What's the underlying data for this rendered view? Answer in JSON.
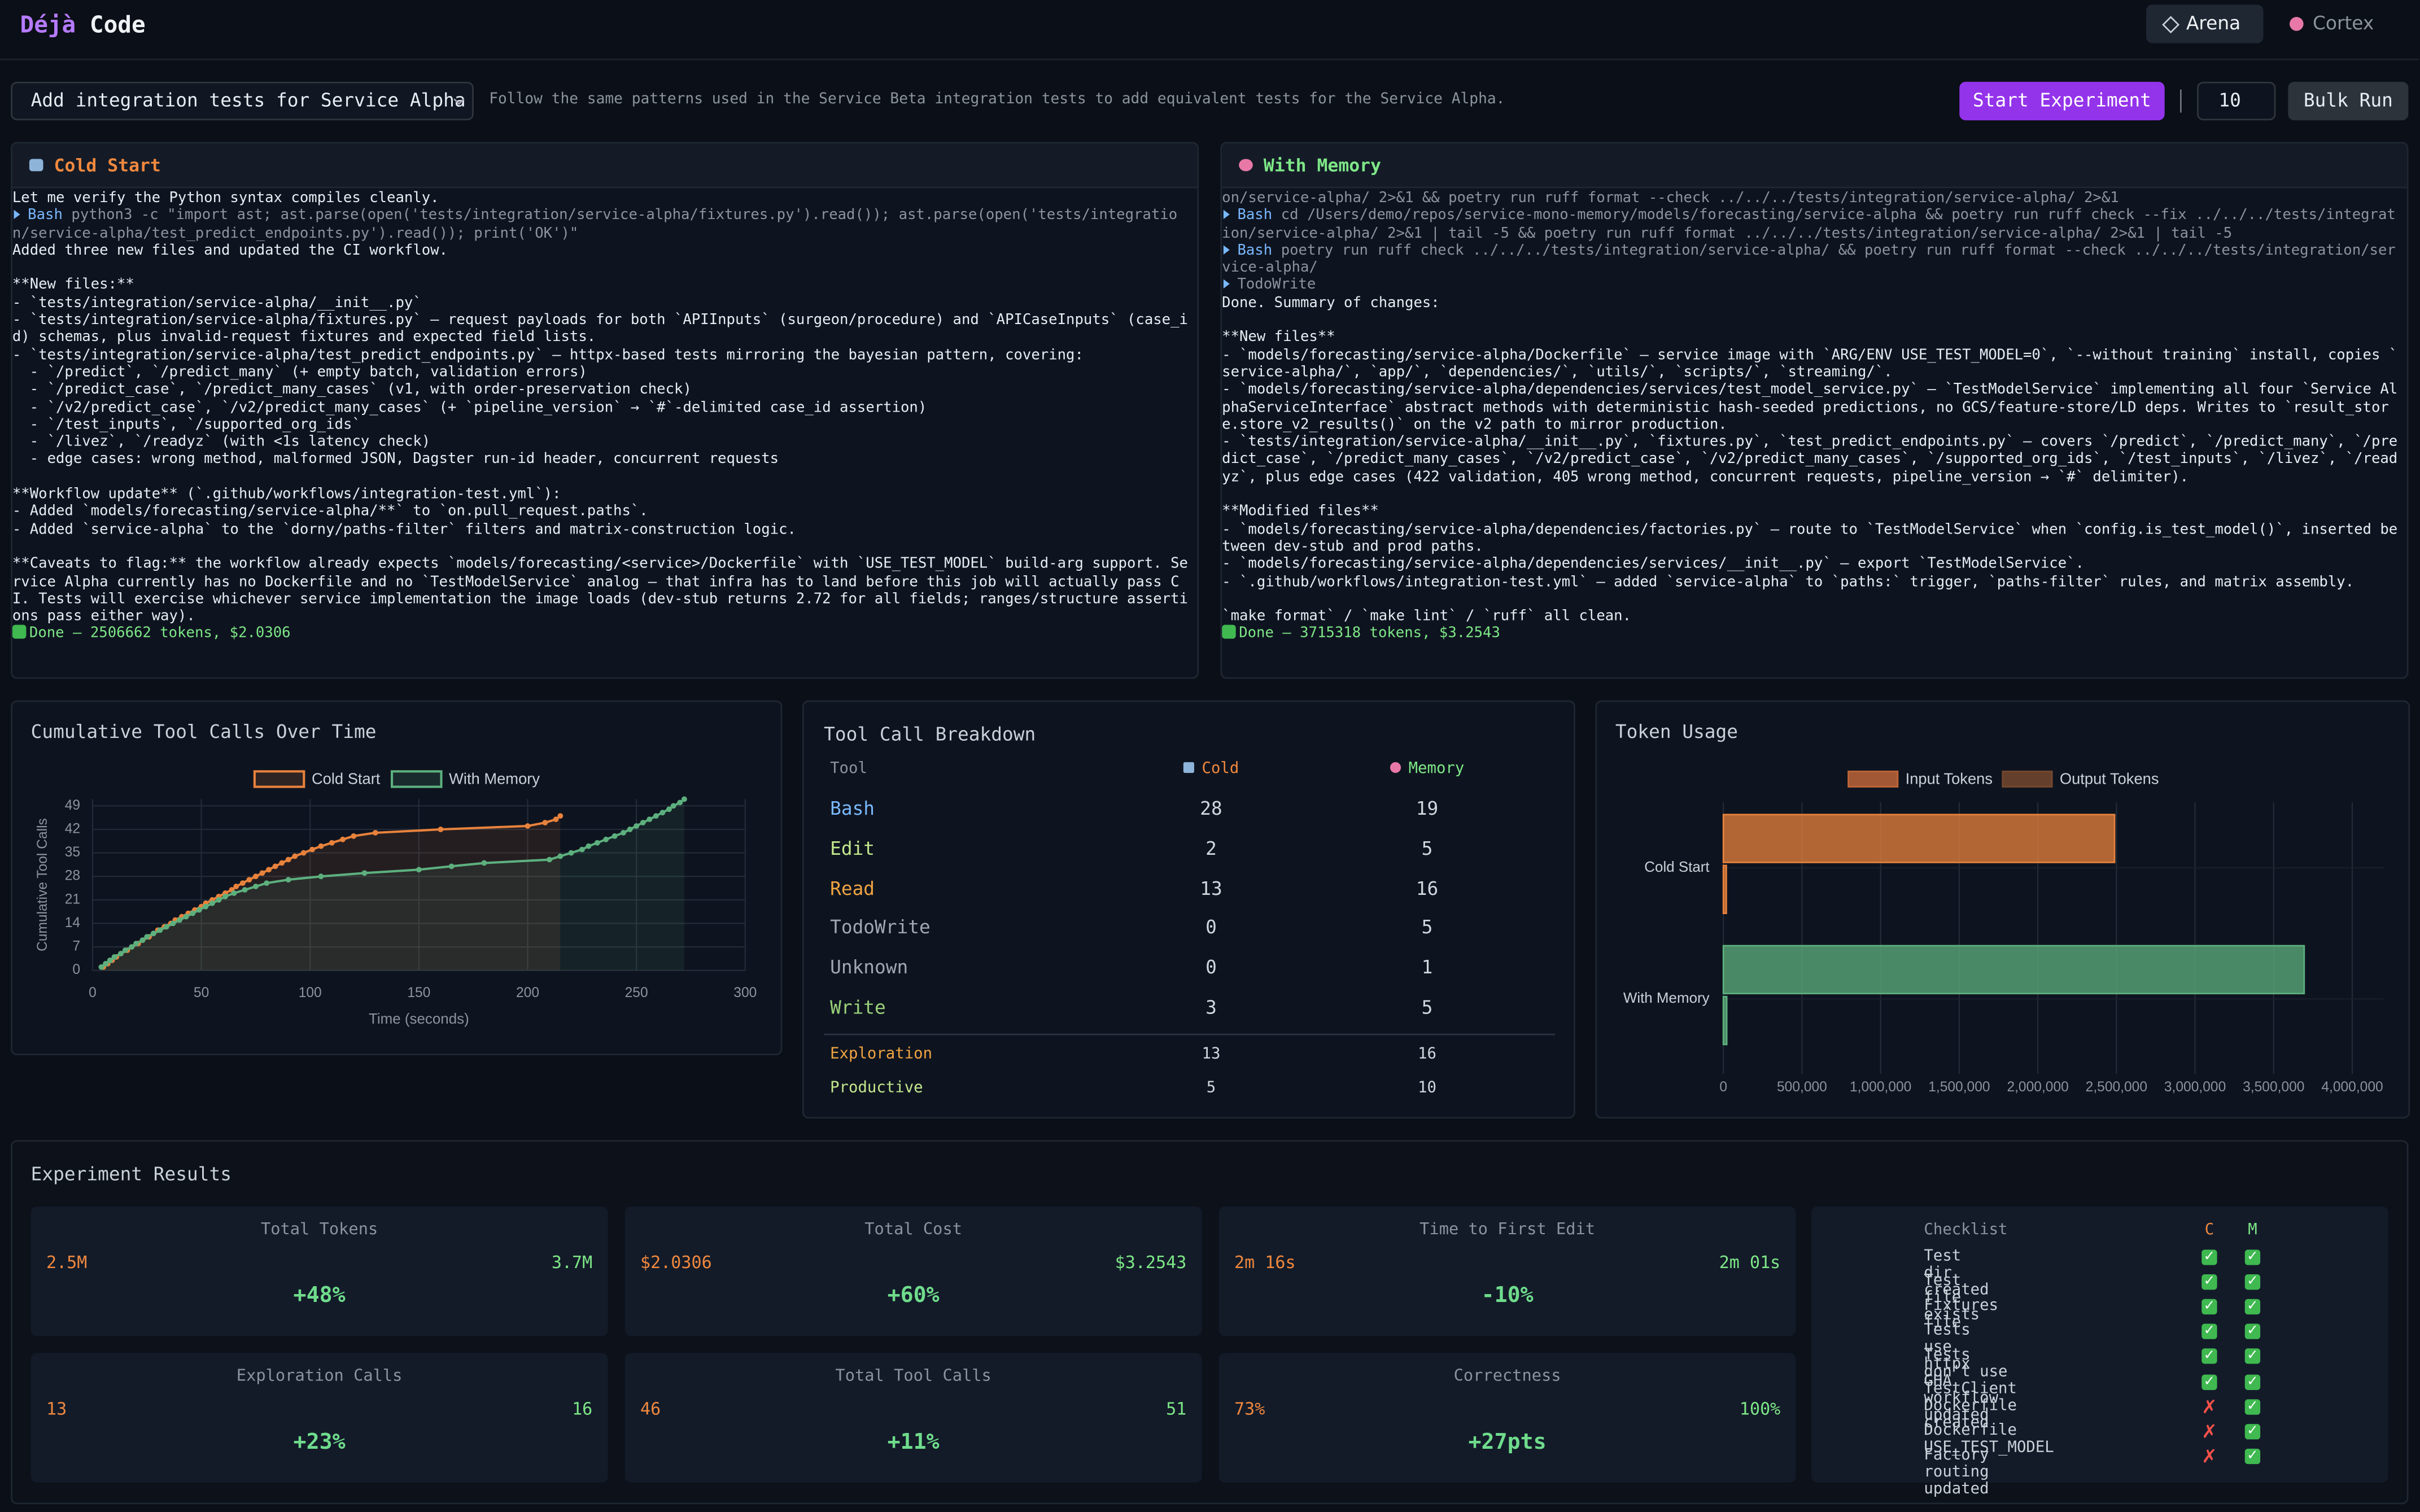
{
  "header": {
    "brand": [
      "Déjà",
      "Code"
    ],
    "tabs": [
      "Arena",
      "Cortex"
    ]
  },
  "toolbar": {
    "task": "Add integration tests for Service Alpha",
    "description": "Follow the same patterns used in the Service Beta integration tests to add equivalent tests for the Service Alpha.",
    "start_button": "Start Experiment",
    "runs": "10",
    "bulk_button": "Bulk Run"
  },
  "panels": {
    "cold_start": {
      "title": "Cold Start",
      "blocks": [
        [
          "Let me verify the Python syntax compiles cleanly.",
          {
            "tool": "Bash",
            "text": "python3 -c \"import ast; ast.parse(open('tests/integration/service-alpha/fixtures.py').read()); ast.parse(open('tests/integration/service-alpha/test_predict_endpoints.py').read()); print('OK')\""
          },
          "Added three new files and updated the CI workflow."
        ],
        [
          "**New files:**",
          "- `tests/integration/service-alpha/__init__.py`",
          "- `tests/integration/service-alpha/fixtures.py` — request payloads for both `APIInputs` (surgeon/procedure) and `APICaseInputs` (case_id) schemas, plus invalid-request fixtures and expected field lists.",
          "- `tests/integration/service-alpha/test_predict_endpoints.py` — httpx-based tests mirroring the bayesian pattern, covering:",
          "  - `/predict`, `/predict_many` (+ empty batch, validation errors)",
          "  - `/predict_case`, `/predict_many_cases` (v1, with order-preservation check)",
          "  - `/v2/predict_case`, `/v2/predict_many_cases` (+ `pipeline_version` → `#`-delimited case_id assertion)",
          "  - `/test_inputs`, `/supported_org_ids`",
          "  - `/livez`, `/readyz` (with <1s latency check)",
          "  - edge cases: wrong method, malformed JSON, Dagster run-id header, concurrent requests"
        ],
        [
          "**Workflow update** (`.github/workflows/integration-test.yml`):",
          "- Added `models/forecasting/service-alpha/**` to `on.pull_request.paths`.",
          "- Added `service-alpha` to the `dorny/paths-filter` filters and matrix-construction logic."
        ],
        [
          "**Caveats to flag:** the workflow already expects `models/forecasting/<service>/Dockerfile` with `USE_TEST_MODEL` build-arg support. Service Alpha currently has no Dockerfile and no `TestModelService` analog — that infra has to land before this job will actually pass CI. Tests will exercise whichever service implementation the image loads (dev-stub returns 2.72 for all fields; ranges/structure assertions pass either way).",
          {
            "done": "Done — 2506662 tokens, $2.0306"
          }
        ]
      ]
    },
    "with_memory": {
      "title": "With Memory",
      "blocks": [
        [
          {
            "cont": "on/service-alpha/ 2>&1 && poetry run ruff format --check ../../../tests/integration/service-alpha/ 2>&1"
          },
          {
            "tool": "Bash",
            "text": "cd /Users/demo/repos/service-mono-memory/models/forecasting/service-alpha && poetry run ruff check --fix ../../../tests/integration/service-alpha/ 2>&1 | tail -5 && poetry run ruff format ../../../tests/integration/service-alpha/ 2>&1 | tail -5"
          },
          {
            "tool": "Bash",
            "text": "poetry run ruff check ../../../tests/integration/service-alpha/ && poetry run ruff format --check ../../../tests/integration/service-alpha/"
          },
          {
            "tool": "TodoWrite"
          },
          "Done. Summary of changes:"
        ],
        [
          "**New files**",
          "- `models/forecasting/service-alpha/Dockerfile` — service image with `ARG/ENV USE_TEST_MODEL=0`, `--without training` install, copies `service-alpha/`, `app/`, `dependencies/`, `utils/`, `scripts/`, `streaming/`.",
          "- `models/forecasting/service-alpha/dependencies/services/test_model_service.py` — `TestModelService` implementing all four `Service AlphaServiceInterface` abstract methods with deterministic hash-seeded predictions, no GCS/feature-store/LD deps. Writes to `result_store.store_v2_results()` on the v2 path to mirror production.",
          "- `tests/integration/service-alpha/__init__.py`, `fixtures.py`, `test_predict_endpoints.py` — covers `/predict`, `/predict_many`, `/predict_case`, `/predict_many_cases`, `/v2/predict_case`, `/v2/predict_many_cases`, `/supported_org_ids`, `/test_inputs`, `/livez`, `/readyz`, plus edge cases (422 validation, 405 wrong method, concurrent requests, pipeline_version → `#` delimiter)."
        ],
        [
          "**Modified files**",
          "- `models/forecasting/service-alpha/dependencies/factories.py` — route to `TestModelService` when `config.is_test_model()`, inserted between dev-stub and prod paths.",
          "- `models/forecasting/service-alpha/dependencies/services/__init__.py` — export `TestModelService`.",
          "- `.github/workflows/integration-test.yml` — added `service-alpha` to `paths:` trigger, `paths-filter` rules, and matrix assembly."
        ],
        [
          "`make format` / `make lint` / `ruff` all clean.",
          {
            "done": "Done — 3715318 tokens, $3.2543"
          }
        ]
      ]
    }
  },
  "chart_data": [
    {
      "type": "line",
      "title": "Cumulative Tool Calls Over Time",
      "xlabel": "Time (seconds)",
      "ylabel": "Cumulative Tool Calls",
      "xlim": [
        0,
        300
      ],
      "xticks": [
        0,
        50,
        100,
        150,
        200,
        250,
        300
      ],
      "ylim": [
        0,
        51
      ],
      "yticks": [
        0,
        7,
        14,
        21,
        28,
        35,
        42,
        49
      ],
      "grid": true,
      "legend": "top",
      "series": [
        {
          "name": "Cold Start",
          "color": "#e8823c",
          "x": [
            5,
            7,
            9,
            11,
            13,
            16,
            18,
            21,
            23,
            26,
            28,
            30,
            33,
            36,
            38,
            41,
            44,
            47,
            50,
            52,
            55,
            58,
            61,
            64,
            66,
            69,
            72,
            75,
            78,
            81,
            84,
            87,
            90,
            93,
            97,
            101,
            105,
            110,
            115,
            120,
            130,
            160,
            200,
            208,
            213,
            215
          ],
          "values": [
            1,
            2,
            3,
            4,
            5,
            6,
            7,
            8,
            9,
            10,
            11,
            12,
            13,
            14,
            15,
            16,
            17,
            18,
            19,
            20,
            21,
            22,
            23,
            24,
            25,
            26,
            27,
            28,
            29,
            30,
            31,
            32,
            33,
            34,
            35,
            36,
            37,
            38,
            39,
            40,
            41,
            42,
            43,
            44,
            45,
            46
          ]
        },
        {
          "name": "With Memory",
          "color": "#5db07e",
          "x": [
            4,
            6,
            8,
            10,
            13,
            15,
            18,
            20,
            23,
            25,
            28,
            31,
            34,
            37,
            40,
            43,
            46,
            49,
            52,
            55,
            58,
            61,
            65,
            70,
            75,
            80,
            90,
            105,
            125,
            150,
            165,
            180,
            210,
            215,
            220,
            225,
            228,
            232,
            236,
            240,
            244,
            247,
            250,
            253,
            256,
            259,
            262,
            265,
            267,
            270,
            272
          ],
          "values": [
            1,
            2,
            3,
            4,
            5,
            6,
            7,
            8,
            9,
            10,
            11,
            12,
            13,
            14,
            15,
            16,
            17,
            18,
            19,
            20,
            21,
            22,
            23,
            24,
            25,
            26,
            27,
            28,
            29,
            30,
            31,
            32,
            33,
            34,
            35,
            36,
            37,
            38,
            39,
            40,
            41,
            42,
            43,
            44,
            45,
            46,
            47,
            48,
            49,
            50,
            51
          ]
        }
      ]
    },
    {
      "type": "bar",
      "orientation": "horizontal",
      "title": "Token Usage",
      "categories": [
        "Cold Start",
        "With Memory"
      ],
      "category_colors": [
        "#e8823c",
        "#5db07e"
      ],
      "xlim": [
        0,
        4200000
      ],
      "xticks": [
        0,
        {
          "value": 500000,
          "label": "500,000"
        },
        {
          "value": 1000000,
          "label": "1,000,000"
        },
        {
          "value": 1500000,
          "label": "1,500,000"
        },
        {
          "value": 2000000,
          "label": "2,000,000"
        },
        {
          "value": 2500000,
          "label": "2,500,000"
        },
        {
          "value": 3000000,
          "label": "3,000,000"
        },
        {
          "value": 3500000,
          "label": "3,500,000"
        },
        {
          "value": 4000000,
          "label": "4,000,000"
        }
      ],
      "grid": true,
      "legend": "top",
      "series": [
        {
          "name": "Input Tokens",
          "color": "#c8693a",
          "values": [
            2488000,
            3694000
          ]
        },
        {
          "name": "Output Tokens",
          "color": "#7a4a30",
          "values": [
            18662,
            21318
          ]
        }
      ]
    }
  ],
  "tool_table": {
    "title": "Tool Call Breakdown",
    "headers": [
      "Tool",
      "Cold",
      "Memory"
    ],
    "rows": [
      {
        "tool": "Bash",
        "cold": "28",
        "memory": "19",
        "color": "#79b8ff"
      },
      {
        "tool": "Edit",
        "cold": "2",
        "memory": "5",
        "color": "#c3e88d"
      },
      {
        "tool": "Read",
        "cold": "13",
        "memory": "16",
        "color": "#f0a442"
      },
      {
        "tool": "TodoWrite",
        "cold": "0",
        "memory": "5",
        "color": "#a0a8b4"
      },
      {
        "tool": "Unknown",
        "cold": "0",
        "memory": "1",
        "color": "#a0a8b4"
      },
      {
        "tool": "Write",
        "cold": "3",
        "memory": "5",
        "color": "#9ad27a"
      }
    ],
    "summary": [
      {
        "tool": "Exploration",
        "cold": "13",
        "memory": "16",
        "color": "#f0a442"
      },
      {
        "tool": "Productive",
        "cold": "5",
        "memory": "10",
        "color": "#c3e88d"
      }
    ]
  },
  "results": {
    "title": "Experiment Results",
    "metrics": [
      {
        "label": "Total Tokens",
        "cold": "2.5M",
        "memory": "3.7M",
        "delta": "+48%"
      },
      {
        "label": "Total Cost",
        "cold": "$2.0306",
        "memory": "$3.2543",
        "delta": "+60%"
      },
      {
        "label": "Time to First Edit",
        "cold": "2m 16s",
        "memory": "2m 01s",
        "delta": "-10%"
      },
      {
        "label": "Exploration Calls",
        "cold": "13",
        "memory": "16",
        "delta": "+23%"
      },
      {
        "label": "Total Tool Calls",
        "cold": "46",
        "memory": "51",
        "delta": "+11%"
      },
      {
        "label": "Correctness",
        "cold": "73%",
        "memory": "100%",
        "delta": "+27pts"
      }
    ],
    "checklist": {
      "title": "Checklist",
      "cold_label": "C",
      "memory_label": "M",
      "items": [
        {
          "label": "Test dir created",
          "cold": "✓",
          "memory": "✓"
        },
        {
          "label": "Test file exists",
          "cold": "✓",
          "memory": "✓"
        },
        {
          "label": "Fixtures file",
          "cold": "✓",
          "memory": "✓"
        },
        {
          "label": "Tests use httpx",
          "cold": "✓",
          "memory": "✓"
        },
        {
          "label": "Tests don't use TestClient",
          "cold": "✓",
          "memory": "✓"
        },
        {
          "label": "GHA workflow updated",
          "cold": "✓",
          "memory": "✓"
        },
        {
          "label": "Dockerfile created",
          "cold": "✗",
          "memory": "✓"
        },
        {
          "label": "Dockerfile USE_TEST_MODEL",
          "cold": "✗",
          "memory": "✓"
        },
        {
          "label": "Factory routing updated",
          "cold": "✗",
          "memory": "✓"
        }
      ]
    }
  }
}
